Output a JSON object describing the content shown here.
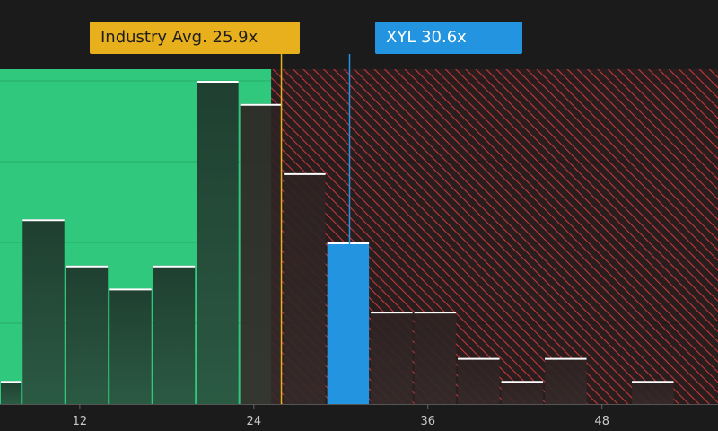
{
  "chart_data": {
    "type": "bar",
    "xlim": [
      6.5,
      56
    ],
    "ylim": [
      0,
      14
    ],
    "bins": [
      {
        "x0": 6.5,
        "x1": 8,
        "count": 1
      },
      {
        "x0": 8,
        "x1": 11,
        "count": 8
      },
      {
        "x0": 11,
        "x1": 14,
        "count": 6
      },
      {
        "x0": 14,
        "x1": 17,
        "count": 5
      },
      {
        "x0": 17,
        "x1": 20,
        "count": 6
      },
      {
        "x0": 20,
        "x1": 23,
        "count": 14
      },
      {
        "x0": 23,
        "x1": 26,
        "count": 13
      },
      {
        "x0": 26,
        "x1": 29,
        "count": 10
      },
      {
        "x0": 29,
        "x1": 32,
        "count": 7
      },
      {
        "x0": 32,
        "x1": 35,
        "count": 4
      },
      {
        "x0": 35,
        "x1": 38,
        "count": 4
      },
      {
        "x0": 38,
        "x1": 41,
        "count": 2
      },
      {
        "x0": 41,
        "x1": 44,
        "count": 1
      },
      {
        "x0": 44,
        "x1": 47,
        "count": 2
      },
      {
        "x0": 47,
        "x1": 50,
        "count": 0
      },
      {
        "x0": 50,
        "x1": 53,
        "count": 1
      }
    ],
    "x_ticks": [
      12,
      24,
      36,
      48
    ],
    "highlight_bin": 8,
    "good_zone_end": 25.2,
    "industry_avg": {
      "label": "Industry Avg. 25.9x",
      "value": 25.9
    },
    "company": {
      "label": "XYL 30.6x",
      "value": 30.6
    },
    "grid": true,
    "colors": {
      "good_zone": "#2fc87c",
      "bar_good": "#234a38",
      "bar_bad": "#2a2222",
      "bar_highlight": "#2394e0",
      "industry": "#e8b01c",
      "company": "#2394e0",
      "hatch": "#c0393b"
    }
  }
}
